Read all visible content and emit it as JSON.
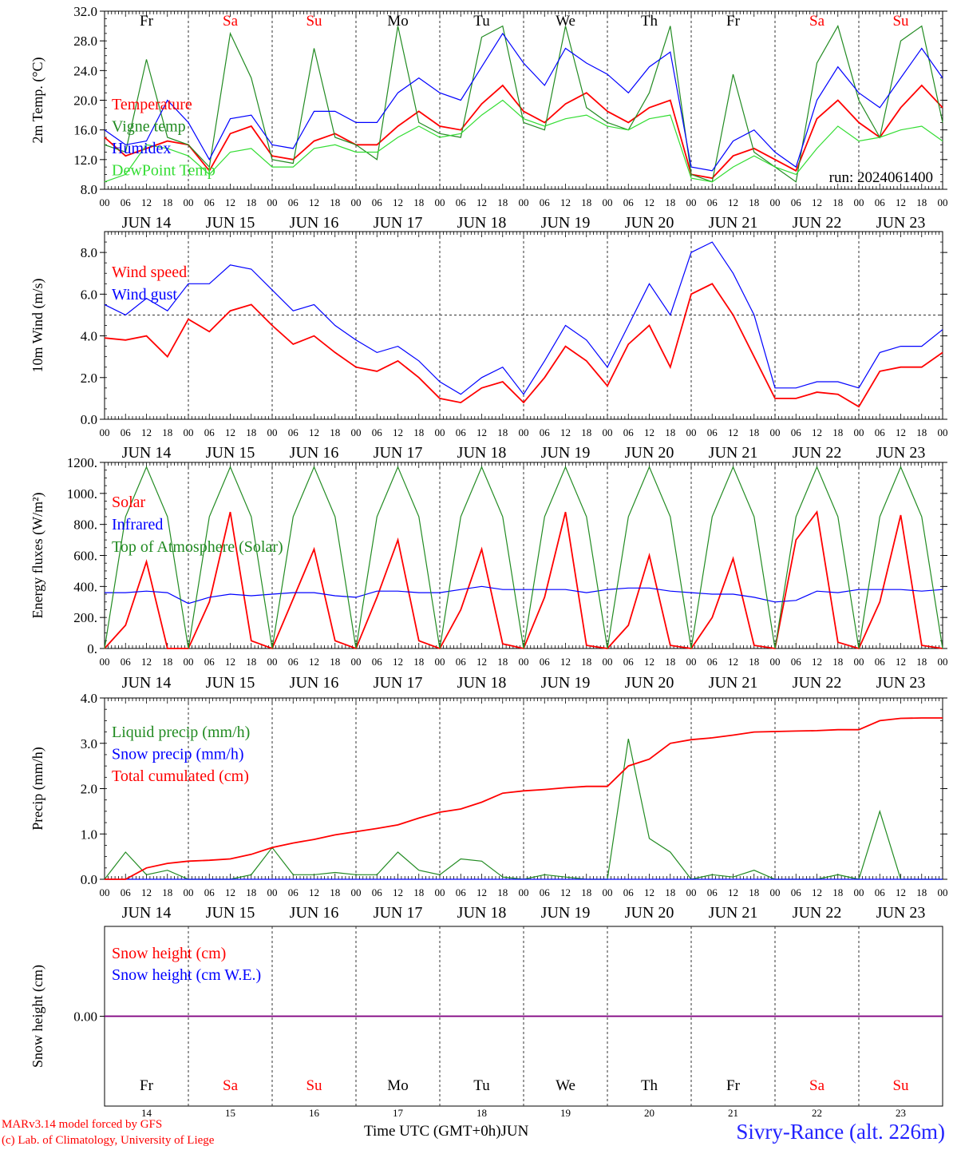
{
  "footer": {
    "model_line": "MARv3.14 model forced by GFS",
    "copyright_line": "(c) Lab. of Climatology, University of Liege",
    "time_axis_label": "Time UTC (GMT+0h)",
    "month_label": "JUN",
    "location": "Sivry-Rance (alt. 226m)"
  },
  "colors": {
    "red": "#ff0000",
    "green": "#228b22",
    "blue": "#0000ff",
    "lightgreen": "#33dd33",
    "purple": "#800080"
  },
  "chart_data": [
    {
      "id": "temperature",
      "type": "line",
      "ylabel": "2m Temp. (°C)",
      "ylim": [
        8,
        32
      ],
      "yticks": [
        "8.0",
        "12.0",
        "16.0",
        "20.0",
        "24.0",
        "28.0",
        "32.0"
      ],
      "hour_ticks": [
        "00",
        "06",
        "12",
        "18"
      ],
      "date_labels": [
        "JUN 14",
        "JUN 15",
        "JUN 16",
        "JUN 17",
        "JUN 18",
        "JUN 19",
        "JUN 20",
        "JUN 21",
        "JUN 22",
        "JUN 23"
      ],
      "weekdays": [
        "Fr",
        "Sa",
        "Su",
        "Mo",
        "Tu",
        "We",
        "Th",
        "Fr",
        "Sa",
        "Su"
      ],
      "run_label": "run: 2024061400",
      "x_step_hours": 6,
      "series": [
        {
          "name": "Temperature",
          "color": "#ff0000",
          "values": [
            15.0,
            12.5,
            13.5,
            14.5,
            14.0,
            10.5,
            15.5,
            16.5,
            12.5,
            12.0,
            14.5,
            15.5,
            14.0,
            14.0,
            16.5,
            18.5,
            16.5,
            16.0,
            19.5,
            22.0,
            18.5,
            17.0,
            19.5,
            21.0,
            18.5,
            17.0,
            19.0,
            20.0,
            10.0,
            9.5,
            12.5,
            13.5,
            12.0,
            10.5,
            17.5,
            20.0,
            17.0,
            15.0,
            19.0,
            22.0,
            19.0
          ]
        },
        {
          "name": "Vigne temp",
          "color": "#228b22",
          "values": [
            14.0,
            13.0,
            25.5,
            15.0,
            14.0,
            11.0,
            29.0,
            23.0,
            12.0,
            11.5,
            27.0,
            15.0,
            14.0,
            12.0,
            30.0,
            17.0,
            15.5,
            15.0,
            28.5,
            30.0,
            17.0,
            16.0,
            30.0,
            19.0,
            17.0,
            16.0,
            21.0,
            30.0,
            10.0,
            9.0,
            23.5,
            13.0,
            11.0,
            9.0,
            25.0,
            30.0,
            20.0,
            15.0,
            28.0,
            30.0,
            17.0
          ]
        },
        {
          "name": "Humidex",
          "color": "#0000ff",
          "values": [
            16.0,
            14.0,
            14.5,
            20.0,
            17.0,
            12.0,
            17.5,
            18.0,
            14.0,
            13.5,
            18.5,
            18.5,
            17.0,
            17.0,
            21.0,
            23.0,
            21.0,
            20.0,
            24.5,
            29.0,
            25.0,
            22.0,
            27.0,
            25.0,
            23.5,
            21.0,
            24.5,
            26.5,
            11.0,
            10.5,
            14.5,
            16.0,
            13.0,
            11.0,
            20.0,
            24.5,
            21.0,
            19.0,
            23.0,
            27.0,
            23.0
          ]
        },
        {
          "name": "DewPoint Temp",
          "color": "#33dd33",
          "values": [
            9.0,
            10.0,
            14.0,
            13.5,
            12.5,
            10.0,
            13.0,
            13.5,
            11.0,
            11.0,
            13.5,
            14.0,
            13.0,
            13.0,
            15.0,
            16.5,
            15.0,
            15.5,
            18.0,
            20.0,
            17.5,
            16.5,
            17.5,
            18.0,
            16.5,
            16.0,
            17.5,
            18.0,
            9.5,
            9.0,
            11.0,
            12.5,
            11.0,
            10.0,
            13.5,
            16.5,
            14.5,
            15.0,
            16.0,
            16.5,
            14.5
          ]
        }
      ]
    },
    {
      "id": "wind",
      "type": "line",
      "ylabel": "10m Wind (m/s)",
      "ylim": [
        0,
        9
      ],
      "yticks": [
        "0.0",
        "2.0",
        "4.0",
        "6.0",
        "8.0"
      ],
      "reference_line": 5.0,
      "hour_ticks": [
        "00",
        "06",
        "12",
        "18"
      ],
      "date_labels": [
        "JUN 14",
        "JUN 15",
        "JUN 16",
        "JUN 17",
        "JUN 18",
        "JUN 19",
        "JUN 20",
        "JUN 21",
        "JUN 22",
        "JUN 23"
      ],
      "x_step_hours": 6,
      "series": [
        {
          "name": "Wind speed",
          "color": "#ff0000",
          "values": [
            3.9,
            3.8,
            4.0,
            3.0,
            4.8,
            4.2,
            5.2,
            5.5,
            4.5,
            3.6,
            4.0,
            3.2,
            2.5,
            2.3,
            2.8,
            2.0,
            1.0,
            0.8,
            1.5,
            1.8,
            0.8,
            2.0,
            3.5,
            2.8,
            1.6,
            3.6,
            4.5,
            2.5,
            6.0,
            6.5,
            5.0,
            3.0,
            1.0,
            1.0,
            1.3,
            1.2,
            0.6,
            2.3,
            2.5,
            2.5,
            3.2
          ]
        },
        {
          "name": "Wind gust",
          "color": "#0000ff",
          "values": [
            5.5,
            5.0,
            5.8,
            5.2,
            6.5,
            6.5,
            7.4,
            7.2,
            6.2,
            5.2,
            5.5,
            4.5,
            3.8,
            3.2,
            3.5,
            2.8,
            1.8,
            1.2,
            2.0,
            2.5,
            1.2,
            2.8,
            4.5,
            3.8,
            2.5,
            4.5,
            6.5,
            5.0,
            8.0,
            8.5,
            7.0,
            5.0,
            1.5,
            1.5,
            1.8,
            1.8,
            1.5,
            3.2,
            3.5,
            3.5,
            4.3
          ]
        }
      ]
    },
    {
      "id": "energy",
      "type": "line",
      "ylabel": "Energy fluxes (W/m²)",
      "ylim": [
        0,
        1200
      ],
      "yticks": [
        "0.",
        "200.",
        "400.",
        "600.",
        "800.",
        "1000.",
        "1200."
      ],
      "hour_ticks": [
        "00",
        "06",
        "12",
        "18"
      ],
      "date_labels": [
        "JUN 14",
        "JUN 15",
        "JUN 16",
        "JUN 17",
        "JUN 18",
        "JUN 19",
        "JUN 20",
        "JUN 21",
        "JUN 22",
        "JUN 23"
      ],
      "x_step_hours": 6,
      "series": [
        {
          "name": "Solar",
          "color": "#ff0000",
          "values": [
            0,
            150,
            560,
            0,
            0,
            300,
            880,
            50,
            0,
            320,
            640,
            50,
            0,
            330,
            700,
            50,
            0,
            250,
            640,
            30,
            0,
            330,
            880,
            20,
            0,
            150,
            600,
            20,
            0,
            200,
            580,
            20,
            0,
            700,
            880,
            40,
            0,
            300,
            860,
            20,
            0
          ]
        },
        {
          "name": "Infrared",
          "color": "#0000ff",
          "values": [
            360,
            360,
            370,
            360,
            290,
            330,
            350,
            340,
            350,
            360,
            360,
            340,
            330,
            370,
            370,
            360,
            360,
            380,
            400,
            380,
            380,
            380,
            380,
            360,
            380,
            390,
            390,
            370,
            360,
            350,
            350,
            330,
            300,
            310,
            370,
            360,
            380,
            380,
            380,
            370,
            380
          ]
        },
        {
          "name": "Top of Atmosphere (Solar)",
          "color": "#228b22",
          "values": [
            0,
            850,
            1170,
            850,
            0,
            850,
            1170,
            850,
            0,
            850,
            1170,
            850,
            0,
            850,
            1170,
            850,
            0,
            850,
            1170,
            850,
            0,
            850,
            1170,
            850,
            0,
            850,
            1170,
            850,
            0,
            850,
            1170,
            850,
            0,
            850,
            1170,
            850,
            0,
            850,
            1170,
            850,
            0
          ]
        }
      ]
    },
    {
      "id": "precip",
      "type": "line",
      "ylabel": "Precip (mm/h)",
      "ylim": [
        0,
        4
      ],
      "yticks": [
        "0.0",
        "1.0",
        "2.0",
        "3.0",
        "4.0"
      ],
      "hour_ticks": [
        "00",
        "06",
        "12",
        "18"
      ],
      "date_labels": [
        "JUN 14",
        "JUN 15",
        "JUN 16",
        "JUN 17",
        "JUN 18",
        "JUN 19",
        "JUN 20",
        "JUN 21",
        "JUN 22",
        "JUN 23"
      ],
      "x_step_hours": 6,
      "series": [
        {
          "name": "Liquid precip (mm/h)",
          "color": "#228b22",
          "values": [
            0,
            0.6,
            0.1,
            0.2,
            0,
            0,
            0,
            0.1,
            0.7,
            0.1,
            0.1,
            0.15,
            0.1,
            0.1,
            0.6,
            0.2,
            0.1,
            0.45,
            0.4,
            0.05,
            0,
            0.1,
            0.05,
            0,
            0,
            3.1,
            0.9,
            0.6,
            0,
            0.1,
            0.05,
            0.2,
            0,
            0,
            0,
            0.1,
            0,
            1.5,
            0,
            0,
            0
          ]
        },
        {
          "name": "Snow precip (mm/h)",
          "color": "#0000ff",
          "values": [
            0,
            0,
            0,
            0,
            0,
            0,
            0,
            0,
            0,
            0,
            0,
            0,
            0,
            0,
            0,
            0,
            0,
            0,
            0,
            0,
            0,
            0,
            0,
            0,
            0,
            0,
            0,
            0,
            0,
            0,
            0,
            0,
            0,
            0,
            0,
            0,
            0,
            0,
            0,
            0,
            0
          ]
        },
        {
          "name": "Total cumulated (cm)",
          "color": "#ff0000",
          "values": [
            0,
            0,
            0.25,
            0.35,
            0.4,
            0.42,
            0.45,
            0.55,
            0.7,
            0.8,
            0.88,
            0.98,
            1.05,
            1.12,
            1.2,
            1.35,
            1.48,
            1.55,
            1.7,
            1.9,
            1.95,
            1.98,
            2.02,
            2.05,
            2.05,
            2.5,
            2.65,
            3.0,
            3.08,
            3.12,
            3.18,
            3.25,
            3.26,
            3.27,
            3.28,
            3.3,
            3.3,
            3.5,
            3.55,
            3.56,
            3.56
          ]
        }
      ]
    },
    {
      "id": "snow",
      "type": "line",
      "ylabel": "Snow height (cm)",
      "ylim": [
        -1,
        1
      ],
      "yticks": [
        "0.00"
      ],
      "weekdays": [
        "Fr",
        "Sa",
        "Su",
        "Mo",
        "Tu",
        "We",
        "Th",
        "Fr",
        "Sa",
        "Su"
      ],
      "day_numbers": [
        "14",
        "15",
        "16",
        "17",
        "18",
        "19",
        "20",
        "21",
        "22",
        "23"
      ],
      "x_step_hours": 6,
      "series": [
        {
          "name": "Snow height (cm)",
          "color": "#ff0000",
          "values": [
            0,
            0
          ]
        },
        {
          "name": "Snow height (cm W.E.)",
          "color": "#0000ff",
          "values": [
            0,
            0
          ]
        }
      ]
    }
  ]
}
